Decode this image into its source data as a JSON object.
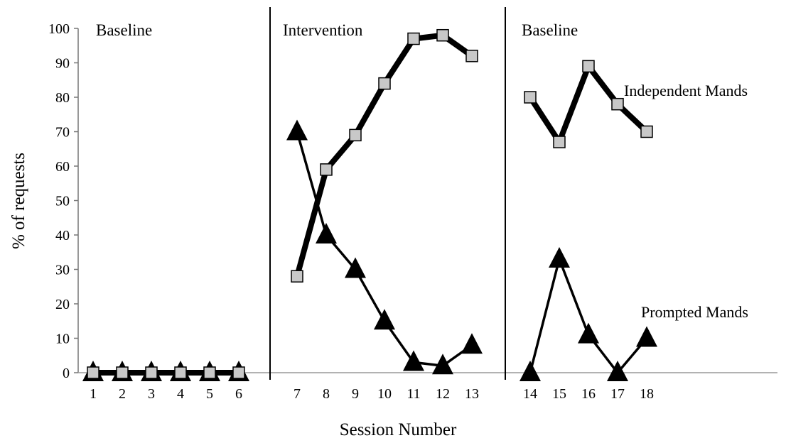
{
  "chart_data": {
    "type": "line",
    "title": "",
    "xlabel": "Session Number",
    "ylabel": "% of requests",
    "ylim": [
      0,
      100
    ],
    "yticks": [
      0,
      10,
      20,
      30,
      40,
      50,
      60,
      70,
      80,
      90,
      100
    ],
    "grid": false,
    "legend": "none",
    "phases": [
      {
        "label": "Baseline",
        "sessions": [
          1,
          2,
          3,
          4,
          5,
          6
        ]
      },
      {
        "label": "Intervention",
        "sessions": [
          7,
          8,
          9,
          10,
          11,
          12,
          13
        ]
      },
      {
        "label": "Baseline",
        "sessions": [
          14,
          15,
          16,
          17,
          18
        ]
      }
    ],
    "series": [
      {
        "name": "Independent Mands",
        "marker": "square",
        "color": "#c8c8c8",
        "points": [
          [
            1,
            0
          ],
          [
            2,
            0
          ],
          [
            3,
            0
          ],
          [
            4,
            0
          ],
          [
            5,
            0
          ],
          [
            6,
            0
          ],
          [
            7,
            28
          ],
          [
            8,
            59
          ],
          [
            9,
            69
          ],
          [
            10,
            84
          ],
          [
            11,
            97
          ],
          [
            12,
            98
          ],
          [
            13,
            92
          ],
          [
            14,
            80
          ],
          [
            15,
            67
          ],
          [
            16,
            89
          ],
          [
            17,
            78
          ],
          [
            18,
            70
          ]
        ]
      },
      {
        "name": "Prompted Mands",
        "marker": "triangle",
        "color": "#000000",
        "points": [
          [
            1,
            0
          ],
          [
            2,
            0
          ],
          [
            3,
            0
          ],
          [
            4,
            0
          ],
          [
            5,
            0
          ],
          [
            6,
            0
          ],
          [
            7,
            70
          ],
          [
            8,
            40
          ],
          [
            9,
            30
          ],
          [
            10,
            15
          ],
          [
            11,
            3
          ],
          [
            12,
            2
          ],
          [
            13,
            8
          ],
          [
            14,
            0
          ],
          [
            15,
            33
          ],
          [
            16,
            11
          ],
          [
            17,
            0
          ],
          [
            18,
            10
          ]
        ]
      }
    ]
  }
}
